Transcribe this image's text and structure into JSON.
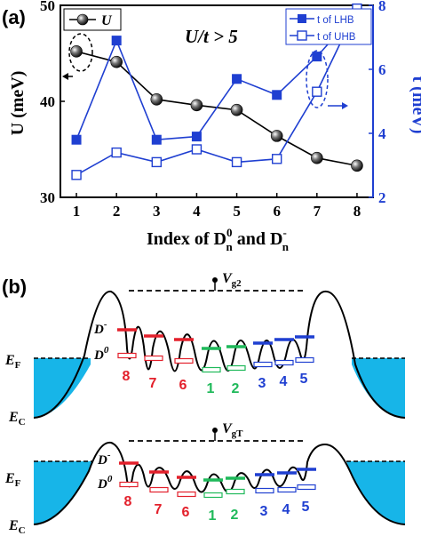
{
  "chart_data": {
    "type": "line",
    "panel_label": "(a)",
    "annotation": "U/t > 5",
    "x": [
      1,
      2,
      3,
      4,
      5,
      6,
      7,
      8
    ],
    "xlim": [
      0.6,
      8.4
    ],
    "xticks": [
      "1",
      "2",
      "3",
      "4",
      "5",
      "6",
      "7",
      "8"
    ],
    "xlabel": "Index of D_n^0 and D_n^-",
    "xlabel_parts": {
      "pre": "Index of D",
      "sup1": "0",
      "sub1": "n",
      "mid": " and D",
      "sup2": "-",
      "sub2": "n"
    },
    "left_axis": {
      "label_text": "U (meV)",
      "ylim": [
        30,
        50
      ],
      "ticks": [
        "30",
        "40",
        "50"
      ],
      "color": "#000000"
    },
    "right_axis": {
      "label_text": "t (meV)",
      "ylim": [
        2,
        8
      ],
      "ticks": [
        "2",
        "4",
        "6",
        "8"
      ],
      "color": "#1f3fd1"
    },
    "series": [
      {
        "name": "U",
        "axis": "left",
        "marker": "sphere",
        "color": "#000000",
        "values": [
          45.2,
          44.1,
          40.2,
          39.6,
          39.1,
          36.4,
          34.1,
          33.3
        ]
      },
      {
        "name": "t of LHB",
        "axis": "right",
        "marker": "filled-square",
        "color": "#1f3fd1",
        "values": [
          3.8,
          6.9,
          3.8,
          3.9,
          5.7,
          5.2,
          6.4,
          7.8
        ]
      },
      {
        "name": "t of UHB",
        "axis": "right",
        "marker": "open-square",
        "color": "#1f3fd1",
        "values": [
          2.7,
          3.4,
          3.1,
          3.5,
          3.1,
          3.2,
          5.3,
          7.9
        ]
      }
    ],
    "legend_left": {
      "text": "U"
    },
    "legend_right": [
      {
        "text": "t of LHB"
      },
      {
        "text": "t of UHB"
      }
    ]
  },
  "panel_b": {
    "panel_label": "(b)",
    "top": {
      "gate": "V",
      "gate_sub": "g2"
    },
    "bottom": {
      "gate": "V",
      "gate_sub": "gT"
    },
    "ef": "E",
    "ef_sub": "F",
    "ec": "E",
    "ec_sub": "C",
    "dminus": "D",
    "dminus_sup": "-",
    "dzero": "D",
    "dzero_sup": "0",
    "indices": [
      "8",
      "7",
      "6",
      "1",
      "2",
      "3",
      "4",
      "5"
    ],
    "colors": {
      "red": "#e3202b",
      "green": "#1fb95a",
      "blue": "#1f3fd1",
      "lead": "#17b5e8"
    }
  }
}
